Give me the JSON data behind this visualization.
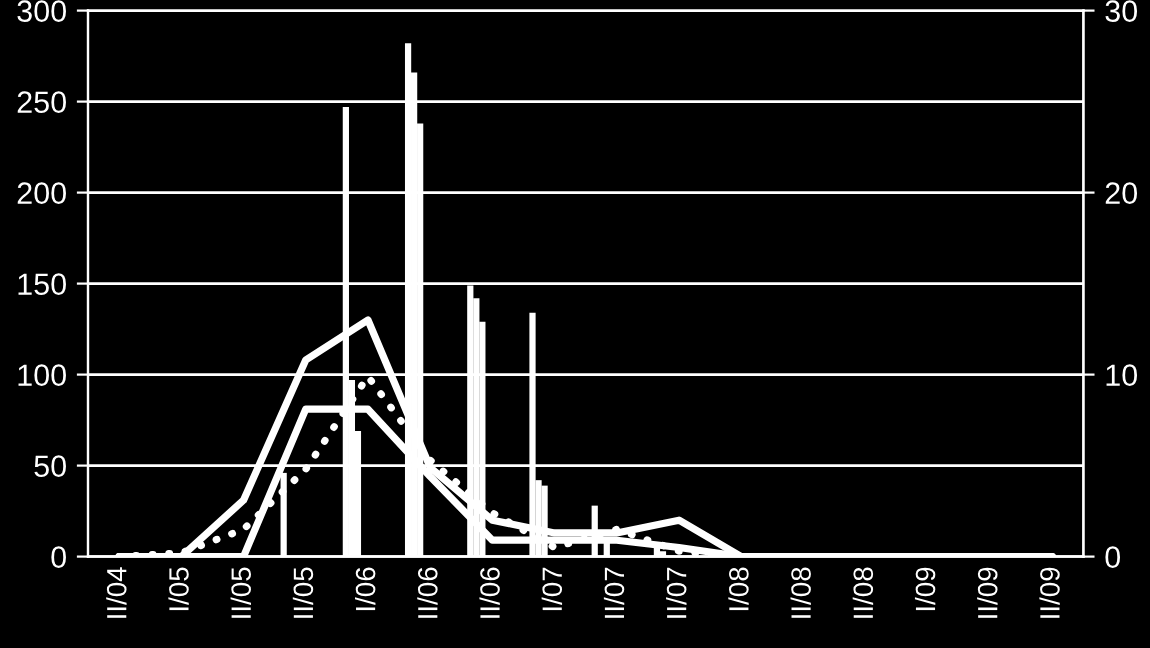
{
  "chart_data": {
    "type": "bar",
    "categories": [
      "II/04",
      "I/05",
      "II/05",
      "II/05",
      "I/06",
      "II/06",
      "II/06",
      "I/07",
      "II/07",
      "II/07",
      "I/08",
      "II/08",
      "II/08",
      "I/09",
      "II/09",
      "II/09"
    ],
    "series": [
      {
        "color": "#ffffff",
        "values": [
          0,
          0,
          0,
          46,
          247,
          282,
          149,
          134,
          28,
          5,
          0,
          0,
          0,
          0,
          0,
          0
        ]
      },
      {
        "color": "#ffffff",
        "values": [
          0,
          0,
          0,
          0,
          97,
          266,
          142,
          42,
          null,
          3,
          0,
          0,
          0,
          0,
          0,
          0
        ]
      },
      {
        "color": "#ffffff",
        "values": [
          0,
          0,
          0,
          0,
          69,
          238,
          129,
          39,
          8,
          null,
          0,
          0,
          0,
          0,
          0,
          0
        ]
      },
      {
        "type": "line",
        "axis": "y2",
        "color": "#ffffff",
        "line_style": "solid",
        "values": [
          0,
          0,
          3.1,
          10.8,
          13.0,
          4.9,
          2.0,
          1.3,
          1.3,
          2.0,
          0,
          0,
          0,
          0,
          0,
          0
        ]
      },
      {
        "type": "line",
        "axis": "y2",
        "color": "#ffffff",
        "line_style": "solid",
        "values": [
          0,
          0,
          0,
          8.1,
          8.1,
          4.4,
          0.9,
          0.9,
          0.9,
          0.5,
          0,
          0,
          0,
          0,
          0,
          0
        ]
      },
      {
        "type": "line",
        "axis": "y2",
        "color": "#ffffff",
        "line_style": "dotted",
        "values": [
          0,
          0.2,
          1.5,
          4.8,
          9.9,
          5.3,
          2.4,
          0.5,
          1.5,
          0.3,
          0,
          0,
          0,
          0,
          0,
          0
        ]
      }
    ],
    "ylim": [
      0,
      300
    ],
    "yticks": [
      0,
      50,
      100,
      150,
      200,
      250,
      300
    ],
    "y2lim": [
      0,
      30
    ],
    "y2ticks": [
      0,
      10,
      20,
      30
    ],
    "grid": "y",
    "legend": false
  }
}
